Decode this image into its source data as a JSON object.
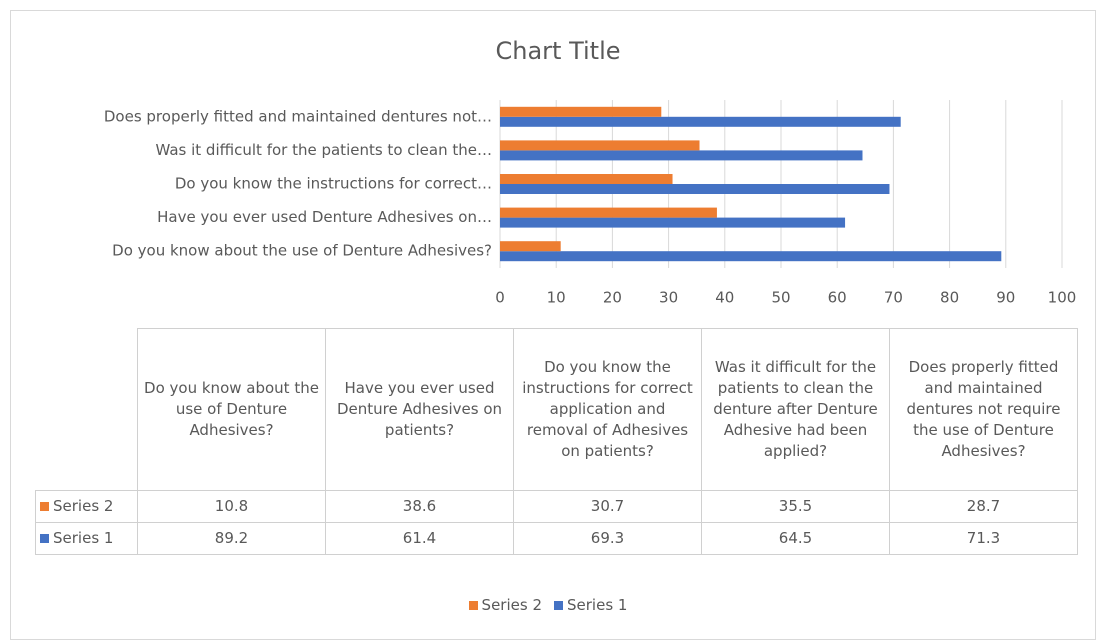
{
  "chart_data": {
    "type": "bar",
    "orientation": "horizontal",
    "title": "Chart Title",
    "categories": [
      "Do you know about the use of Denture Adhesives?",
      "Have you ever used Denture Adhesives on patients?",
      "Do you know the instructions for correct application and removal of Adhesives on patients?",
      "Was it difficult for the patients to clean the denture after Denture Adhesive had been applied?",
      "Does properly fitted and maintained dentures not require the use of Denture Adhesives?"
    ],
    "axis_labels": [
      "Do you know about the use of Denture Adhesives?",
      "Have you ever used Denture Adhesives on…",
      "Do you know the instructions for correct…",
      "Was it difficult for the patients to clean the…",
      "Does properly fitted and maintained dentures not…"
    ],
    "series": [
      {
        "name": "Series 1",
        "color": "#4472c4",
        "values": [
          89.2,
          61.4,
          69.3,
          64.5,
          71.3
        ]
      },
      {
        "name": "Series 2",
        "color": "#ed7d31",
        "values": [
          10.8,
          38.6,
          30.7,
          35.5,
          28.7
        ]
      }
    ],
    "xlim": [
      0,
      100
    ],
    "xticks": [
      0,
      10,
      20,
      30,
      40,
      50,
      60,
      70,
      80,
      90,
      100
    ],
    "grid": true,
    "legend": "bottom",
    "data_table": true
  }
}
